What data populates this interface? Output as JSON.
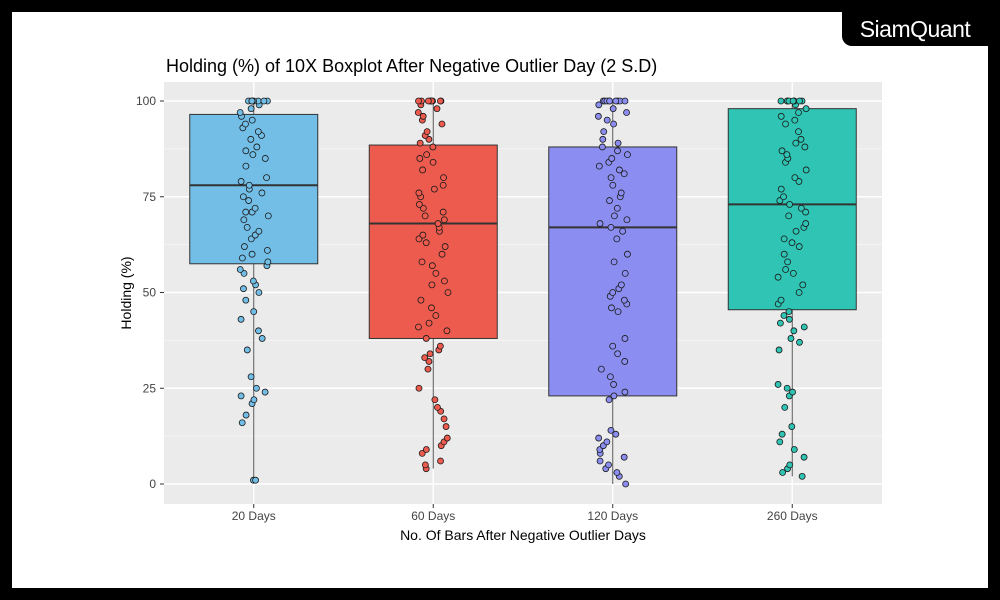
{
  "brand": {
    "logo_text": "SiamQuant"
  },
  "chart_data": {
    "type": "box",
    "title": "Holding (%) of 10X Boxplot After Negative Outlier Day (2 S.D)",
    "xlabel": "No. Of Bars After Negative Outlier Days",
    "ylabel": "Holding (%)",
    "ylim": [
      0,
      100
    ],
    "yticks": [
      0,
      25,
      50,
      75,
      100
    ],
    "grid": true,
    "categories": [
      "20 Days",
      "60 Days",
      "120 Days",
      "260 Days"
    ],
    "colors": [
      "#73bee7",
      "#ec5b4e",
      "#8b8ef0",
      "#2fc4b4"
    ],
    "series": [
      {
        "category": "20 Days",
        "q1": 57.5,
        "median": 78,
        "q3": 96.5,
        "whisker_low": 1,
        "whisker_high": 100,
        "points": [
          1,
          1,
          16,
          18,
          21,
          22,
          23,
          24,
          25,
          28,
          35,
          38,
          40,
          43,
          45,
          48,
          50,
          51,
          52,
          53,
          55,
          56,
          57,
          58,
          59,
          60,
          61,
          62,
          64,
          65,
          66,
          67,
          69,
          70,
          71,
          71,
          72,
          74,
          75,
          76,
          77,
          78,
          79,
          80,
          83,
          85,
          86,
          87,
          88,
          90,
          91,
          92,
          93,
          94,
          95,
          96,
          97,
          98,
          99,
          100,
          100,
          100,
          100,
          100,
          100,
          100,
          100,
          100
        ]
      },
      {
        "category": "60 Days",
        "q1": 38,
        "median": 68,
        "q3": 88.5,
        "whisker_low": 4,
        "whisker_high": 100,
        "points": [
          4,
          5,
          6,
          8,
          9,
          10,
          11,
          12,
          15,
          17,
          19,
          20,
          22,
          25,
          30,
          32,
          33,
          34,
          35,
          36,
          38,
          40,
          41,
          42,
          44,
          46,
          48,
          50,
          52,
          53,
          55,
          57,
          58,
          60,
          62,
          63,
          64,
          65,
          66,
          67,
          68,
          69,
          70,
          71,
          72,
          73,
          75,
          76,
          77,
          78,
          80,
          82,
          84,
          85,
          86,
          88,
          89,
          90,
          91,
          92,
          94,
          95,
          96,
          97,
          98,
          99,
          100,
          100,
          100,
          100,
          100,
          100,
          100,
          100,
          100
        ]
      },
      {
        "category": "120 Days",
        "q1": 23,
        "median": 67,
        "q3": 88,
        "whisker_low": 0,
        "whisker_high": 100,
        "points": [
          0,
          2,
          3,
          4,
          5,
          6,
          7,
          8,
          9,
          10,
          11,
          12,
          13,
          14,
          22,
          23,
          24,
          26,
          28,
          30,
          32,
          34,
          36,
          38,
          45,
          46,
          47,
          48,
          49,
          50,
          51,
          52,
          55,
          58,
          60,
          64,
          66,
          67,
          68,
          69,
          70,
          72,
          74,
          75,
          76,
          78,
          80,
          81,
          82,
          83,
          84,
          85,
          86,
          87,
          88,
          89,
          90,
          92,
          94,
          95,
          96,
          97,
          98,
          99,
          100,
          100,
          100,
          100,
          100,
          100,
          100,
          100,
          100
        ]
      },
      {
        "category": "260 Days",
        "q1": 45.5,
        "median": 73,
        "q3": 98,
        "whisker_low": 2,
        "whisker_high": 100,
        "points": [
          2,
          3,
          4,
          5,
          7,
          9,
          11,
          13,
          15,
          20,
          23,
          24,
          25,
          26,
          35,
          37,
          38,
          40,
          41,
          42,
          43,
          44,
          45,
          47,
          48,
          50,
          52,
          54,
          55,
          56,
          58,
          60,
          62,
          63,
          64,
          66,
          67,
          68,
          70,
          71,
          72,
          73,
          74,
          75,
          77,
          79,
          80,
          82,
          84,
          85,
          86,
          87,
          88,
          89,
          90,
          92,
          94,
          95,
          96,
          97,
          98,
          99,
          100,
          100,
          100,
          100,
          100,
          100,
          100,
          100,
          100
        ]
      }
    ]
  }
}
